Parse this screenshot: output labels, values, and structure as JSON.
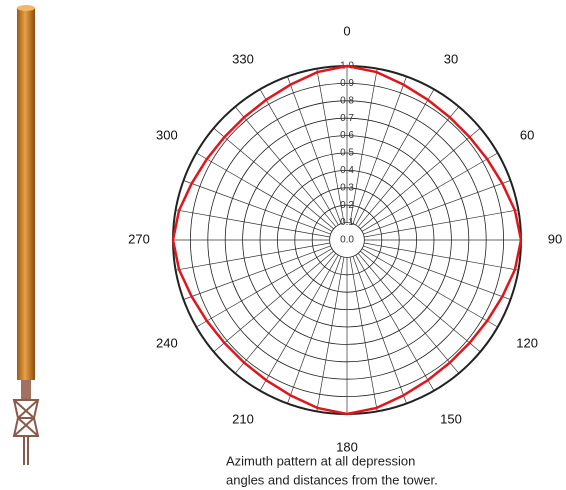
{
  "chart_data": {
    "type": "polar",
    "theta": [
      0,
      10,
      20,
      30,
      40,
      50,
      60,
      70,
      80,
      90,
      100,
      110,
      120,
      130,
      140,
      150,
      160,
      170,
      180,
      190,
      200,
      210,
      220,
      230,
      240,
      250,
      260,
      270,
      280,
      290,
      300,
      310,
      320,
      330,
      340,
      350
    ],
    "values": [
      1.0,
      0.98,
      0.95,
      0.93,
      0.92,
      0.92,
      0.93,
      0.95,
      0.98,
      1.0,
      0.98,
      0.95,
      0.93,
      0.92,
      0.92,
      0.93,
      0.95,
      0.98,
      1.0,
      0.98,
      0.95,
      0.93,
      0.92,
      0.92,
      0.93,
      0.95,
      0.98,
      1.0,
      0.98,
      0.95,
      0.93,
      0.92,
      0.92,
      0.93,
      0.95,
      0.98
    ],
    "color": "#e0161b",
    "rlim": [
      0,
      1
    ],
    "rticks": [
      {
        "value": 0,
        "label": "0.0"
      },
      {
        "value": 0.1,
        "label": "0.1"
      },
      {
        "value": 0.2,
        "label": "0.2"
      },
      {
        "value": 0.3,
        "label": "0.3"
      },
      {
        "value": 0.4,
        "label": "0.4"
      },
      {
        "value": 0.5,
        "label": "0.5"
      },
      {
        "value": 0.6,
        "label": "0.6"
      },
      {
        "value": 0.7,
        "label": "0.7"
      },
      {
        "value": 0.8,
        "label": "0.8"
      },
      {
        "value": 0.9,
        "label": "0.9"
      },
      {
        "value": 1,
        "label": "1.0"
      }
    ],
    "thetaticks": [
      0,
      30,
      60,
      90,
      120,
      150,
      180,
      210,
      240,
      270,
      300,
      330
    ],
    "grid": true,
    "caption": [
      "Azimuth pattern at all depression",
      "angles and distances from the tower."
    ]
  }
}
